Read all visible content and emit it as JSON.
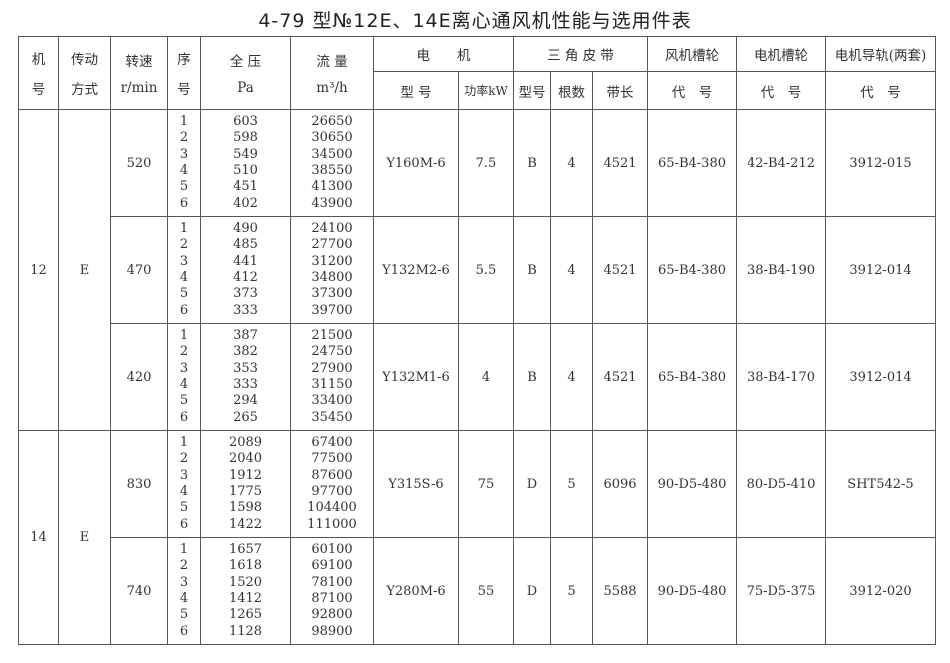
{
  "title": "4-79 型№12E、14E离心通风机性能与选用件表",
  "headers": {
    "machine_no": [
      "机",
      "号"
    ],
    "drive": [
      "传动",
      "方式"
    ],
    "speed": [
      "转速",
      "r/min"
    ],
    "seq": [
      "序",
      "号"
    ],
    "pressure": [
      "全 压",
      "Pa"
    ],
    "flow": [
      "流 量",
      "m³/h"
    ],
    "motor": "电　　机",
    "motor_model": "型 号",
    "motor_power": "功率kW",
    "belt": "三 角 皮 带",
    "belt_type": "型号",
    "belt_count": "根数",
    "belt_length": "带长",
    "fan_pulley": "风机槽轮",
    "fan_pulley_code": "代　号",
    "motor_pulley": "电机槽轮",
    "motor_pulley_code": "代　号",
    "motor_rail": "电机导轨(两套)",
    "motor_rail_code": "代　号"
  },
  "groups": [
    {
      "machine": "12",
      "drive": "E",
      "speeds": [
        {
          "rpm": "520",
          "seq": [
            "1",
            "2",
            "3",
            "4",
            "5",
            "6"
          ],
          "pressure": [
            "603",
            "598",
            "549",
            "510",
            "451",
            "402"
          ],
          "flow": [
            "26650",
            "30650",
            "34500",
            "38550",
            "41300",
            "43900"
          ],
          "motor_model": "Y160M-6",
          "power": "7.5",
          "belt_type": "B",
          "belt_count": "4",
          "belt_length": "4521",
          "fan_pulley": "65-B4-380",
          "motor_pulley": "42-B4-212",
          "motor_rail": "3912-015"
        },
        {
          "rpm": "470",
          "seq": [
            "1",
            "2",
            "3",
            "4",
            "5",
            "6"
          ],
          "pressure": [
            "490",
            "485",
            "441",
            "412",
            "373",
            "333"
          ],
          "flow": [
            "24100",
            "27700",
            "31200",
            "34800",
            "37300",
            "39700"
          ],
          "motor_model": "Y132M2-6",
          "power": "5.5",
          "belt_type": "B",
          "belt_count": "4",
          "belt_length": "4521",
          "fan_pulley": "65-B4-380",
          "motor_pulley": "38-B4-190",
          "motor_rail": "3912-014"
        },
        {
          "rpm": "420",
          "seq": [
            "1",
            "2",
            "3",
            "4",
            "5",
            "6"
          ],
          "pressure": [
            "387",
            "382",
            "353",
            "333",
            "294",
            "265"
          ],
          "flow": [
            "21500",
            "24750",
            "27900",
            "31150",
            "33400",
            "35450"
          ],
          "motor_model": "Y132M1-6",
          "power": "4",
          "belt_type": "B",
          "belt_count": "4",
          "belt_length": "4521",
          "fan_pulley": "65-B4-380",
          "motor_pulley": "38-B4-170",
          "motor_rail": "3912-014"
        }
      ]
    },
    {
      "machine": "14",
      "drive": "E",
      "speeds": [
        {
          "rpm": "830",
          "seq": [
            "1",
            "2",
            "3",
            "4",
            "5",
            "6"
          ],
          "pressure": [
            "2089",
            "2040",
            "1912",
            "1775",
            "1598",
            "1422"
          ],
          "flow": [
            "67400",
            "77500",
            "87600",
            "97700",
            "104400",
            "111000"
          ],
          "motor_model": "Y315S-6",
          "power": "75",
          "belt_type": "D",
          "belt_count": "5",
          "belt_length": "6096",
          "fan_pulley": "90-D5-480",
          "motor_pulley": "80-D5-410",
          "motor_rail": "SHT542-5"
        },
        {
          "rpm": "740",
          "seq": [
            "1",
            "2",
            "3",
            "4",
            "5",
            "6"
          ],
          "pressure": [
            "1657",
            "1618",
            "1520",
            "1412",
            "1265",
            "1128"
          ],
          "flow": [
            "60100",
            "69100",
            "78100",
            "87100",
            "92800",
            "98900"
          ],
          "motor_model": "Y280M-6",
          "power": "55",
          "belt_type": "D",
          "belt_count": "5",
          "belt_length": "5588",
          "fan_pulley": "90-D5-480",
          "motor_pulley": "75-D5-375",
          "motor_rail": "3912-020"
        }
      ]
    }
  ]
}
